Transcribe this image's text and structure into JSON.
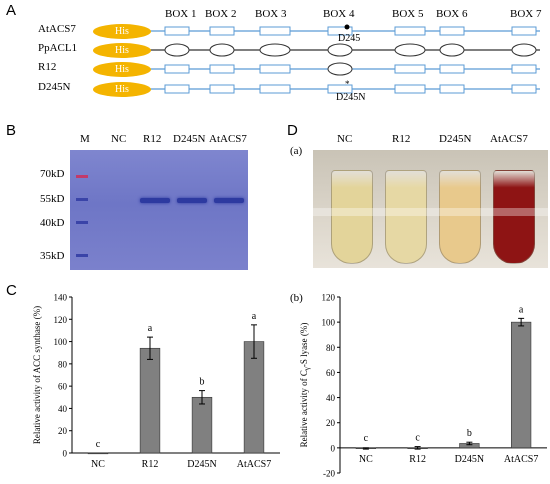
{
  "panels": {
    "a": "A",
    "b": "B",
    "c": "C",
    "d": "D",
    "da": "(a)",
    "db": "(b)"
  },
  "panelA": {
    "boxes": [
      "BOX 1",
      "BOX 2",
      "BOX 3",
      "BOX 4",
      "BOX 5",
      "BOX 6",
      "BOX 7"
    ],
    "rows": [
      {
        "name": "AtACS7",
        "tag": "His"
      },
      {
        "name": "PpACL1",
        "tag": "His"
      },
      {
        "name": "R12",
        "tag": "His"
      },
      {
        "name": "D245N",
        "tag": "His"
      }
    ],
    "site_label": "D245",
    "mut_label": "D245N"
  },
  "panelB": {
    "lanes": [
      "M",
      "NC",
      "R12",
      "D245N",
      "AtACS7"
    ],
    "markers": [
      "70kD",
      "55kD",
      "40kD",
      "35kD"
    ]
  },
  "panelD": {
    "tubes": [
      "NC",
      "R12",
      "D245N",
      "AtACS7"
    ],
    "colors": {
      "nc": "#e3d49a",
      "r12": "#e6d8a4",
      "d245n": "#e8c98c",
      "atacs7": "#8e1414"
    }
  },
  "chart_data": [
    {
      "type": "bar",
      "panel": "C",
      "categories": [
        "NC",
        "R12",
        "D245N",
        "AtACS7"
      ],
      "values": [
        0,
        94,
        50,
        100
      ],
      "errors": [
        0,
        10,
        6,
        15
      ],
      "letters": [
        "c",
        "a",
        "b",
        "a"
      ],
      "ylabel": "Relative activity of ACC synthase (%)",
      "ylim": [
        0,
        140
      ],
      "yticks": [
        "0",
        "20",
        "40",
        "60",
        "80",
        "100",
        "120",
        "140"
      ],
      "bar_color": "#808080"
    },
    {
      "type": "bar",
      "panel": "(b)",
      "categories": [
        "NC",
        "R12",
        "D245N",
        "AtACS7"
      ],
      "values": [
        -0.5,
        0,
        3.5,
        100
      ],
      "errors": [
        0.5,
        1,
        1,
        3
      ],
      "letters": [
        "c",
        "c",
        "b",
        "a"
      ],
      "ylabel_main": "Relative activity of C",
      "ylabel_sub": "γ",
      "ylabel_end": "-S lyase (%)",
      "ylim": [
        -20,
        120
      ],
      "yticks": [
        "-20",
        "0",
        "20",
        "40",
        "60",
        "80",
        "100",
        "120"
      ],
      "bar_color": "#808080"
    }
  ]
}
